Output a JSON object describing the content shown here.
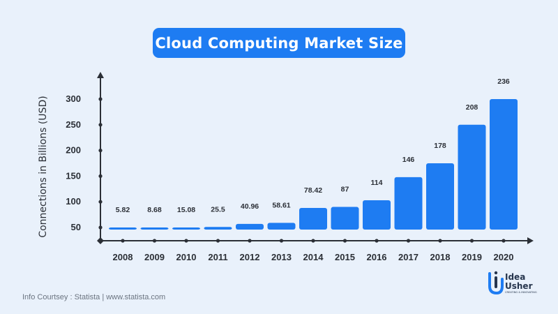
{
  "title": "Cloud Computing Market Size",
  "footer": "Info Courtsey : Statista | www.statista.com",
  "logo": {
    "line1": "Idea",
    "line2": "Usher",
    "tagline": "CREATING & INNOVATING"
  },
  "colors": {
    "background": "#e9f1fb",
    "bar": "#1e7cf2",
    "axis": "#2b2f36",
    "title_pill": "#1e7cf2"
  },
  "chart_data": {
    "type": "bar",
    "title": "Cloud Computing Market Size",
    "ylabel": "Connections in Billions (USD)",
    "xlabel": "",
    "categories": [
      "2008",
      "2009",
      "2010",
      "2011",
      "2012",
      "2013",
      "2014",
      "2015",
      "2016",
      "2017",
      "2018",
      "2019",
      "2020"
    ],
    "values": [
      5.82,
      8.68,
      15.08,
      25.5,
      40.96,
      58.61,
      78.42,
      87,
      114,
      146,
      178,
      208,
      236
    ],
    "data_labels": [
      "5.82",
      "8.68",
      "15.08",
      "25.5",
      "40.96",
      "58.61",
      "78.42",
      "87",
      "114",
      "146",
      "178",
      "208",
      "236"
    ],
    "bar_heights_on_axis": [
      45,
      46,
      49,
      51,
      57,
      59,
      88,
      90,
      103,
      148,
      175,
      250,
      300
    ],
    "yticks": [
      50,
      100,
      150,
      200,
      250,
      300
    ],
    "ytick_labels": [
      "50",
      "100",
      "150",
      "200",
      "250",
      "300"
    ],
    "ylim": [
      30,
      330
    ],
    "grid": false,
    "legend": "none"
  }
}
